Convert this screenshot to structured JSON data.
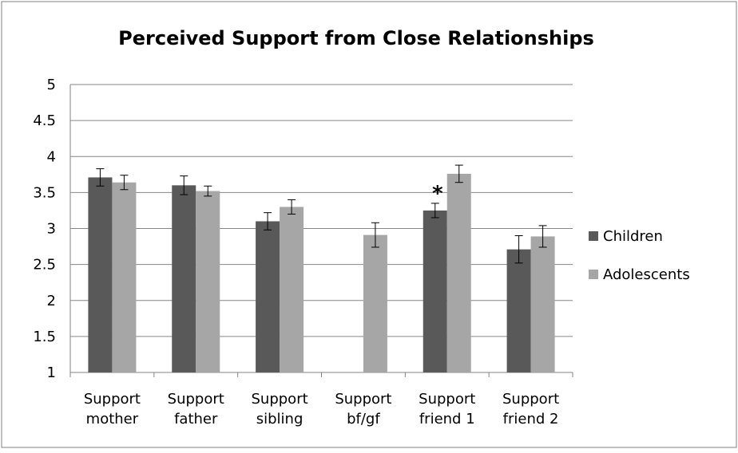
{
  "chart_data": {
    "type": "bar",
    "title": "Perceived Support from Close Relationships",
    "xlabel": "",
    "ylabel": "",
    "ylim": [
      1,
      5
    ],
    "yticks": [
      "1",
      "1.5",
      "2",
      "2.5",
      "3",
      "3.5",
      "4",
      "4.5",
      "5"
    ],
    "grid": true,
    "legend_position": "right",
    "categories": [
      [
        "Support",
        "mother"
      ],
      [
        "Support",
        "father"
      ],
      [
        "Support",
        "sibling"
      ],
      [
        "Support",
        "bf/gf"
      ],
      [
        "Support",
        "friend 1"
      ],
      [
        "Support",
        "friend 2"
      ]
    ],
    "series": [
      {
        "name": "Children",
        "color": "#595959",
        "values": [
          3.71,
          3.6,
          3.1,
          null,
          3.25,
          2.71
        ],
        "errors": [
          0.12,
          0.13,
          0.12,
          null,
          0.1,
          0.19
        ]
      },
      {
        "name": "Adolescents",
        "color": "#a6a6a6",
        "values": [
          3.64,
          3.52,
          3.3,
          2.91,
          3.76,
          2.89
        ],
        "errors": [
          0.1,
          0.07,
          0.1,
          0.17,
          0.12,
          0.15
        ]
      }
    ],
    "annotations": [
      {
        "text": "*",
        "category_index": 4,
        "series_index": 0
      }
    ]
  }
}
